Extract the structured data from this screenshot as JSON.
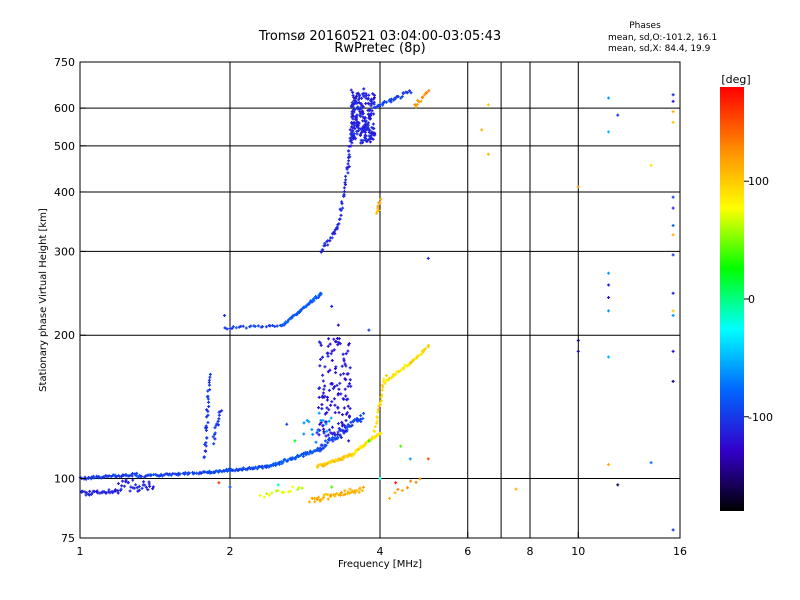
{
  "header": {
    "title": "Tromsø 20160521 03:04:00-03:05:43",
    "subtitle": "RwPretec (8p)"
  },
  "info": {
    "heading": "Phases",
    "line1": "mean, sd,O:-101.2, 16.1",
    "line2": "mean, sd,X:  84.4, 19.9"
  },
  "chart_data": {
    "type": "scatter",
    "title": "Tromsø 20160521 03:04:00-03:05:43",
    "subtitle": "RwPretec (8p)",
    "xlabel": "Frequency [MHz]",
    "ylabel": "Stationary phase Virtual Height [km]",
    "xscale": "log",
    "yscale": "log",
    "xlim": [
      1,
      16
    ],
    "ylim": [
      75,
      750
    ],
    "xticks": [
      1,
      2,
      4,
      6,
      8,
      10,
      16
    ],
    "xtick_labels": [
      "1",
      "2",
      "4",
      "6",
      "8",
      "10",
      "16"
    ],
    "xgrid": [
      2,
      4,
      6,
      7,
      8,
      10
    ],
    "yticks": [
      75,
      100,
      200,
      300,
      400,
      500,
      600,
      750
    ],
    "ytick_labels": [
      "75",
      "100",
      "200",
      "300",
      "400",
      "500",
      "600",
      "750"
    ],
    "ygrid": [
      100,
      200,
      300,
      400,
      500,
      600
    ],
    "grid": true,
    "colorbar": {
      "label": "[deg]",
      "range": [
        -180,
        180
      ],
      "ticks": [
        100,
        0,
        -100
      ],
      "tick_labels": [
        "100",
        "0",
        "-100"
      ],
      "colors": [
        "#ff0000",
        "#ff8800",
        "#ffff00",
        "#00ff00",
        "#00ffff",
        "#0066ff",
        "#3300cc",
        "#000000"
      ]
    },
    "series": [
      {
        "name": "Phases O",
        "traces": [
          {
            "f": [
              1.0,
              1.3
            ],
            "h": [
              100,
              102
            ],
            "ph": -100,
            "n": 50,
            "jitter": 0.012
          },
          {
            "f": [
              1.0,
              1.2
            ],
            "h": [
              93,
              94
            ],
            "ph": -112,
            "n": 35,
            "jitter": 0.02
          },
          {
            "f": [
              1.2,
              1.4
            ],
            "h": [
              95,
              98
            ],
            "ph": -110,
            "n": 30,
            "jitter": 0.04
          },
          {
            "f": [
              1.3,
              1.8
            ],
            "h": [
              101,
              103
            ],
            "ph": -96,
            "n": 55,
            "jitter": 0.01
          },
          {
            "f": [
              1.8,
              2.4
            ],
            "h": [
              103,
              106
            ],
            "ph": -92,
            "n": 60,
            "jitter": 0.012
          },
          {
            "f": [
              2.4,
              3.0
            ],
            "h": [
              106,
              115
            ],
            "ph": -84,
            "n": 55,
            "jitter": 0.015
          },
          {
            "f": [
              3.0,
              3.7
            ],
            "h": [
              115,
              135
            ],
            "ph": -96,
            "n": 60,
            "jitter": 0.03
          },
          {
            "f": [
              1.78,
              1.82
            ],
            "h": [
              110,
              165
            ],
            "ph": -105,
            "n": 30,
            "jitter": 0.03
          },
          {
            "f": [
              1.85,
              1.92
            ],
            "h": [
              120,
              140
            ],
            "ph": -100,
            "n": 15,
            "jitter": 0.03
          },
          {
            "f": [
              1.95,
              2.55
            ],
            "h": [
              207,
              210
            ],
            "ph": -96,
            "n": 25,
            "jitter": 0.01
          },
          {
            "f": [
              2.55,
              3.05
            ],
            "h": [
              210,
              245
            ],
            "ph": -82,
            "n": 50,
            "jitter": 0.01
          },
          {
            "f": [
              3.0,
              3.5
            ],
            "h": [
              120,
              200
            ],
            "ph": -118,
            "n": 140,
            "jitter": 0.05
          },
          {
            "f": [
              3.05,
              3.3
            ],
            "h": [
              300,
              340
            ],
            "ph": -110,
            "n": 20,
            "jitter": 0.02
          },
          {
            "f": [
              3.3,
              3.45
            ],
            "h": [
              340,
              450
            ],
            "ph": -110,
            "n": 22,
            "jitter": 0.02
          },
          {
            "f": [
              3.45,
              3.55
            ],
            "h": [
              450,
              620
            ],
            "ph": -108,
            "n": 30,
            "jitter": 0.015
          },
          {
            "f": [
              3.5,
              3.9
            ],
            "h": [
              510,
              650
            ],
            "ph": -112,
            "n": 210,
            "jitter": 0.04
          },
          {
            "f": [
              3.9,
              4.6
            ],
            "h": [
              600,
              650
            ],
            "ph": -95,
            "n": 30,
            "jitter": 0.02
          },
          {
            "f": [
              2.8,
              3.2
            ],
            "h": [
              120,
              140
            ],
            "ph": -60,
            "n": 15,
            "jitter": 0.04
          }
        ]
      },
      {
        "name": "Phases X",
        "traces": [
          {
            "f": [
              3.0,
              3.5
            ],
            "h": [
              106,
              112
            ],
            "ph": 100,
            "n": 50,
            "jitter": 0.012
          },
          {
            "f": [
              3.5,
              4.0
            ],
            "h": [
              112,
              125
            ],
            "ph": 90,
            "n": 40,
            "jitter": 0.012
          },
          {
            "f": [
              3.9,
              4.1
            ],
            "h": [
              125,
              165
            ],
            "ph": 92,
            "n": 22,
            "jitter": 0.015
          },
          {
            "f": [
              4.1,
              4.6
            ],
            "h": [
              160,
              175
            ],
            "ph": 85,
            "n": 25,
            "jitter": 0.012
          },
          {
            "f": [
              4.6,
              5.0
            ],
            "h": [
              175,
              190
            ],
            "ph": 95,
            "n": 18,
            "jitter": 0.01
          },
          {
            "f": [
              2.9,
              3.7
            ],
            "h": [
              90,
              95
            ],
            "ph": 110,
            "n": 45,
            "jitter": 0.03
          },
          {
            "f": [
              2.3,
              2.8
            ],
            "h": [
              92,
              96
            ],
            "ph": 70,
            "n": 15,
            "jitter": 0.02
          },
          {
            "f": [
              3.95,
              4.0
            ],
            "h": [
              360,
              385
            ],
            "ph": 110,
            "n": 8,
            "jitter": 0.01
          },
          {
            "f": [
              4.7,
              5.0
            ],
            "h": [
              605,
              650
            ],
            "ph": 125,
            "n": 12,
            "jitter": 0.02
          },
          {
            "f": [
              4.2,
              4.8
            ],
            "h": [
              92,
              100
            ],
            "ph": 120,
            "n": 8,
            "jitter": 0.03
          }
        ]
      },
      {
        "name": "Scattered",
        "points": [
          {
            "f": 6.4,
            "h": 540,
            "ph": 110
          },
          {
            "f": 6.6,
            "h": 610,
            "ph": 100
          },
          {
            "f": 6.6,
            "h": 480,
            "ph": 110
          },
          {
            "f": 7.5,
            "h": 95,
            "ph": 110
          },
          {
            "f": 5.0,
            "h": 290,
            "ph": -110
          },
          {
            "f": 5.0,
            "h": 110,
            "ph": 150
          },
          {
            "f": 4.6,
            "h": 110,
            "ph": -60
          },
          {
            "f": 4.3,
            "h": 98,
            "ph": 170
          },
          {
            "f": 10.0,
            "h": 195,
            "ph": -150
          },
          {
            "f": 10.0,
            "h": 185,
            "ph": -130
          },
          {
            "f": 10.0,
            "h": 410,
            "ph": 120
          },
          {
            "f": 11.5,
            "h": 630,
            "ph": -60
          },
          {
            "f": 11.5,
            "h": 535,
            "ph": -50
          },
          {
            "f": 11.5,
            "h": 270,
            "ph": -60
          },
          {
            "f": 11.5,
            "h": 255,
            "ph": -110
          },
          {
            "f": 11.5,
            "h": 240,
            "ph": -120
          },
          {
            "f": 11.5,
            "h": 225,
            "ph": -60
          },
          {
            "f": 11.5,
            "h": 180,
            "ph": -50
          },
          {
            "f": 11.5,
            "h": 107,
            "ph": 110
          },
          {
            "f": 12.0,
            "h": 580,
            "ph": -100
          },
          {
            "f": 12.0,
            "h": 97,
            "ph": -160
          },
          {
            "f": 14.0,
            "h": 455,
            "ph": 90
          },
          {
            "f": 14.0,
            "h": 108,
            "ph": -70
          },
          {
            "f": 15.5,
            "h": 640,
            "ph": -110
          },
          {
            "f": 15.5,
            "h": 620,
            "ph": -120
          },
          {
            "f": 15.5,
            "h": 590,
            "ph": 110
          },
          {
            "f": 15.5,
            "h": 560,
            "ph": 100
          },
          {
            "f": 15.5,
            "h": 390,
            "ph": -100
          },
          {
            "f": 15.5,
            "h": 370,
            "ph": -110
          },
          {
            "f": 15.5,
            "h": 340,
            "ph": -80
          },
          {
            "f": 15.5,
            "h": 325,
            "ph": 110
          },
          {
            "f": 15.5,
            "h": 295,
            "ph": -100
          },
          {
            "f": 15.5,
            "h": 245,
            "ph": -110
          },
          {
            "f": 15.5,
            "h": 225,
            "ph": 100
          },
          {
            "f": 15.5,
            "h": 220,
            "ph": -60
          },
          {
            "f": 15.5,
            "h": 185,
            "ph": -120
          },
          {
            "f": 15.5,
            "h": 160,
            "ph": -150
          },
          {
            "f": 15.5,
            "h": 78,
            "ph": -100
          },
          {
            "f": 1.95,
            "h": 220,
            "ph": -100
          },
          {
            "f": 1.9,
            "h": 98,
            "ph": 160
          },
          {
            "f": 2.0,
            "h": 96,
            "ph": -90
          },
          {
            "f": 2.6,
            "h": 130,
            "ph": -100
          },
          {
            "f": 2.7,
            "h": 120,
            "ph": 20
          },
          {
            "f": 3.2,
            "h": 230,
            "ph": -110
          },
          {
            "f": 3.3,
            "h": 210,
            "ph": -120
          },
          {
            "f": 3.8,
            "h": 205,
            "ph": -100
          },
          {
            "f": 3.8,
            "h": 120,
            "ph": 30
          },
          {
            "f": 4.0,
            "h": 100,
            "ph": -20
          },
          {
            "f": 4.4,
            "h": 117,
            "ph": 40
          },
          {
            "f": 2.5,
            "h": 97,
            "ph": -10
          },
          {
            "f": 3.2,
            "h": 96,
            "ph": 40
          }
        ]
      }
    ]
  }
}
